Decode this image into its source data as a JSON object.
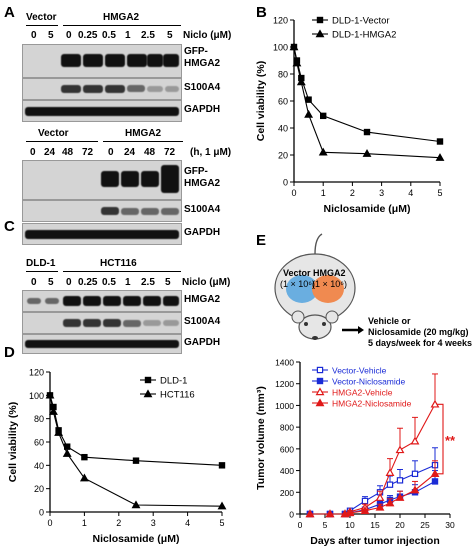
{
  "panels": {
    "A": {
      "letter": "A"
    },
    "B": {
      "letter": "B"
    },
    "C": {
      "letter": "C"
    },
    "D": {
      "letter": "D"
    },
    "E": {
      "letter": "E"
    }
  },
  "blotA1": {
    "group1": "Vector",
    "group2": "HMGA2",
    "unit": "Niclo (μM)",
    "lanes": [
      "0",
      "5",
      "0",
      "0.25",
      "0.5",
      "1",
      "2.5",
      "5"
    ],
    "rows": [
      "GFP-\nHMGA2",
      "S100A4",
      "GAPDH"
    ]
  },
  "blotA2": {
    "group1": "Vector",
    "group2": "HMGA2",
    "unit": "(h, 1 μM)",
    "lanes": [
      "0",
      "24",
      "48",
      "72",
      "0",
      "24",
      "48",
      "72"
    ],
    "rows": [
      "GFP-\nHMGA2",
      "S100A4",
      "GAPDH"
    ]
  },
  "blotC": {
    "group1": "DLD-1",
    "group2": "HCT116",
    "unit": "Niclo (μM)",
    "lanes": [
      "0",
      "5",
      "0",
      "0.25",
      "0.5",
      "1",
      "2.5",
      "5"
    ],
    "rows": [
      "HMGA2",
      "S100A4",
      "GAPDH"
    ]
  },
  "mouse": {
    "left_label": "Vector",
    "left_cells": "(1 × 10⁶)",
    "right_label": "HMGA2",
    "right_cells": "(1 × 10⁶)",
    "treatment_line1": "Vehicle or",
    "treatment_line2": "Niclosamide (20 mg/kg)",
    "treatment_line3": "5 days/week for 4 weeks"
  },
  "chart_data": [
    {
      "id": "B",
      "type": "line",
      "xlabel": "Niclosamide (μM)",
      "ylabel": "Cell viability (%)",
      "xlim": [
        0,
        5
      ],
      "ylim": [
        0,
        120
      ],
      "xticks": [
        0,
        1,
        2,
        3,
        4,
        5
      ],
      "yticks": [
        0,
        20,
        40,
        60,
        80,
        100,
        120
      ],
      "legend": "top-right",
      "series": [
        {
          "name": "DLD-1-Vector",
          "marker": "square",
          "x": [
            0,
            0.1,
            0.25,
            0.5,
            1,
            2.5,
            5
          ],
          "y": [
            100,
            90,
            77,
            61,
            49,
            37,
            30
          ]
        },
        {
          "name": "DLD-1-HMGA2",
          "marker": "triangle",
          "x": [
            0,
            0.1,
            0.25,
            0.5,
            1,
            2.5,
            5
          ],
          "y": [
            100,
            88,
            74,
            50,
            22,
            21,
            18
          ]
        }
      ]
    },
    {
      "id": "D",
      "type": "line",
      "xlabel": "Niclosamide (μM)",
      "ylabel": "Cell viability (%)",
      "xlim": [
        0,
        5
      ],
      "ylim": [
        0,
        120
      ],
      "xticks": [
        0,
        1,
        2,
        3,
        4,
        5
      ],
      "yticks": [
        0,
        20,
        40,
        60,
        80,
        100,
        120
      ],
      "legend": "top-right",
      "series": [
        {
          "name": "DLD-1",
          "marker": "square",
          "x": [
            0,
            0.1,
            0.25,
            0.5,
            1,
            2.5,
            5
          ],
          "y": [
            100,
            90,
            70,
            56,
            47,
            44,
            40
          ]
        },
        {
          "name": "HCT116",
          "marker": "triangle",
          "x": [
            0,
            0.1,
            0.25,
            0.5,
            1,
            2.5,
            5
          ],
          "y": [
            100,
            86,
            68,
            50,
            29,
            6,
            5
          ]
        }
      ]
    },
    {
      "id": "E",
      "type": "line",
      "xlabel": "Days after tumor injection",
      "ylabel": "Tumor volume (mm³)",
      "xlim": [
        0,
        30
      ],
      "ylim": [
        0,
        1400
      ],
      "xticks": [
        0,
        5,
        10,
        15,
        20,
        25,
        30
      ],
      "yticks": [
        0,
        200,
        400,
        600,
        800,
        1000,
        1200,
        1400
      ],
      "legend": "top-left",
      "annotation": "**",
      "series": [
        {
          "name": "Vector-Vehicle",
          "color": "#1a2bd6",
          "marker": "square-open",
          "x": [
            2,
            6,
            9,
            10,
            13,
            16,
            18,
            20,
            23,
            27
          ],
          "y": [
            0,
            0,
            0,
            30,
            120,
            200,
            270,
            310,
            370,
            450
          ],
          "err": [
            0,
            0,
            0,
            10,
            40,
            60,
            80,
            100,
            120,
            160
          ]
        },
        {
          "name": "Vector-Niclosamide",
          "color": "#1a2bd6",
          "marker": "square",
          "x": [
            2,
            6,
            9,
            10,
            13,
            16,
            18,
            20,
            23,
            27
          ],
          "y": [
            0,
            0,
            0,
            10,
            40,
            90,
            130,
            160,
            200,
            300
          ],
          "err": [
            0,
            0,
            0,
            10,
            20,
            30,
            40,
            50,
            70,
            100
          ]
        },
        {
          "name": "HMGA2-Vehicle",
          "color": "#e01818",
          "marker": "triangle-open",
          "x": [
            2,
            6,
            9,
            10,
            13,
            16,
            18,
            20,
            23,
            27
          ],
          "y": [
            0,
            0,
            0,
            20,
            60,
            150,
            380,
            590,
            670,
            1010
          ],
          "err": [
            0,
            0,
            0,
            10,
            30,
            60,
            130,
            200,
            220,
            280
          ]
        },
        {
          "name": "HMGA2-Niclosamide",
          "color": "#e01818",
          "marker": "triangle",
          "x": [
            2,
            6,
            9,
            10,
            13,
            16,
            18,
            20,
            23,
            27
          ],
          "y": [
            0,
            0,
            0,
            10,
            30,
            60,
            100,
            150,
            220,
            370
          ],
          "err": [
            0,
            0,
            0,
            5,
            15,
            30,
            40,
            60,
            80,
            120
          ]
        }
      ]
    }
  ]
}
